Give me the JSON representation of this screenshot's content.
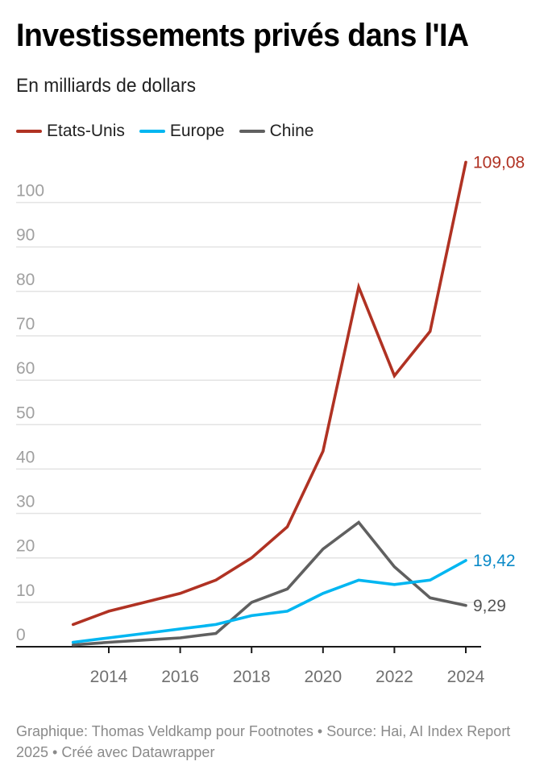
{
  "header": {
    "title": "Investissements privés dans l'IA",
    "subtitle": "En milliards de dollars"
  },
  "legend": [
    {
      "label": "Etats-Unis",
      "color": "#b03223"
    },
    {
      "label": "Europe",
      "color": "#00b6f1"
    },
    {
      "label": "Chine",
      "color": "#606060"
    }
  ],
  "footer": {
    "credit": "Graphique: Thomas Veldkamp pour Footnotes • Source: Hai, AI Index Report 2025 • Créé avec Datawrapper"
  },
  "chart_data": {
    "type": "line",
    "title": "Investissements privés dans l'IA",
    "subtitle": "En milliards de dollars",
    "xlabel": "",
    "ylabel": "",
    "x": [
      2013,
      2014,
      2015,
      2016,
      2017,
      2018,
      2019,
      2020,
      2021,
      2022,
      2023,
      2024
    ],
    "xlim": [
      2011.5,
      2024.5
    ],
    "ylim": [
      0,
      110
    ],
    "x_ticks": [
      "2014",
      "2016",
      "2018",
      "2020",
      "2022",
      "2024"
    ],
    "y_ticks": [
      "0",
      "10",
      "20",
      "30",
      "40",
      "50",
      "60",
      "70",
      "80",
      "90",
      "100"
    ],
    "grid": true,
    "legend_position": "top-left",
    "series": [
      {
        "name": "Etats-Unis",
        "color": "#b03223",
        "label_color": "#b03223",
        "end_label": "109,08",
        "values": [
          5,
          8,
          10,
          12,
          15,
          20,
          27,
          44,
          81,
          61,
          71,
          109.08
        ]
      },
      {
        "name": "Europe",
        "color": "#00b6f1",
        "label_color": "#0a8ac8",
        "end_label": "19,42",
        "values": [
          1,
          2,
          3,
          4,
          5,
          7,
          8,
          12,
          15,
          14,
          15,
          19.42
        ]
      },
      {
        "name": "Chine",
        "color": "#606060",
        "label_color": "#555555",
        "end_label": "9,29",
        "values": [
          0.4,
          1,
          1.5,
          2,
          3,
          10,
          13,
          22,
          28,
          18,
          11,
          9.29
        ]
      }
    ]
  }
}
